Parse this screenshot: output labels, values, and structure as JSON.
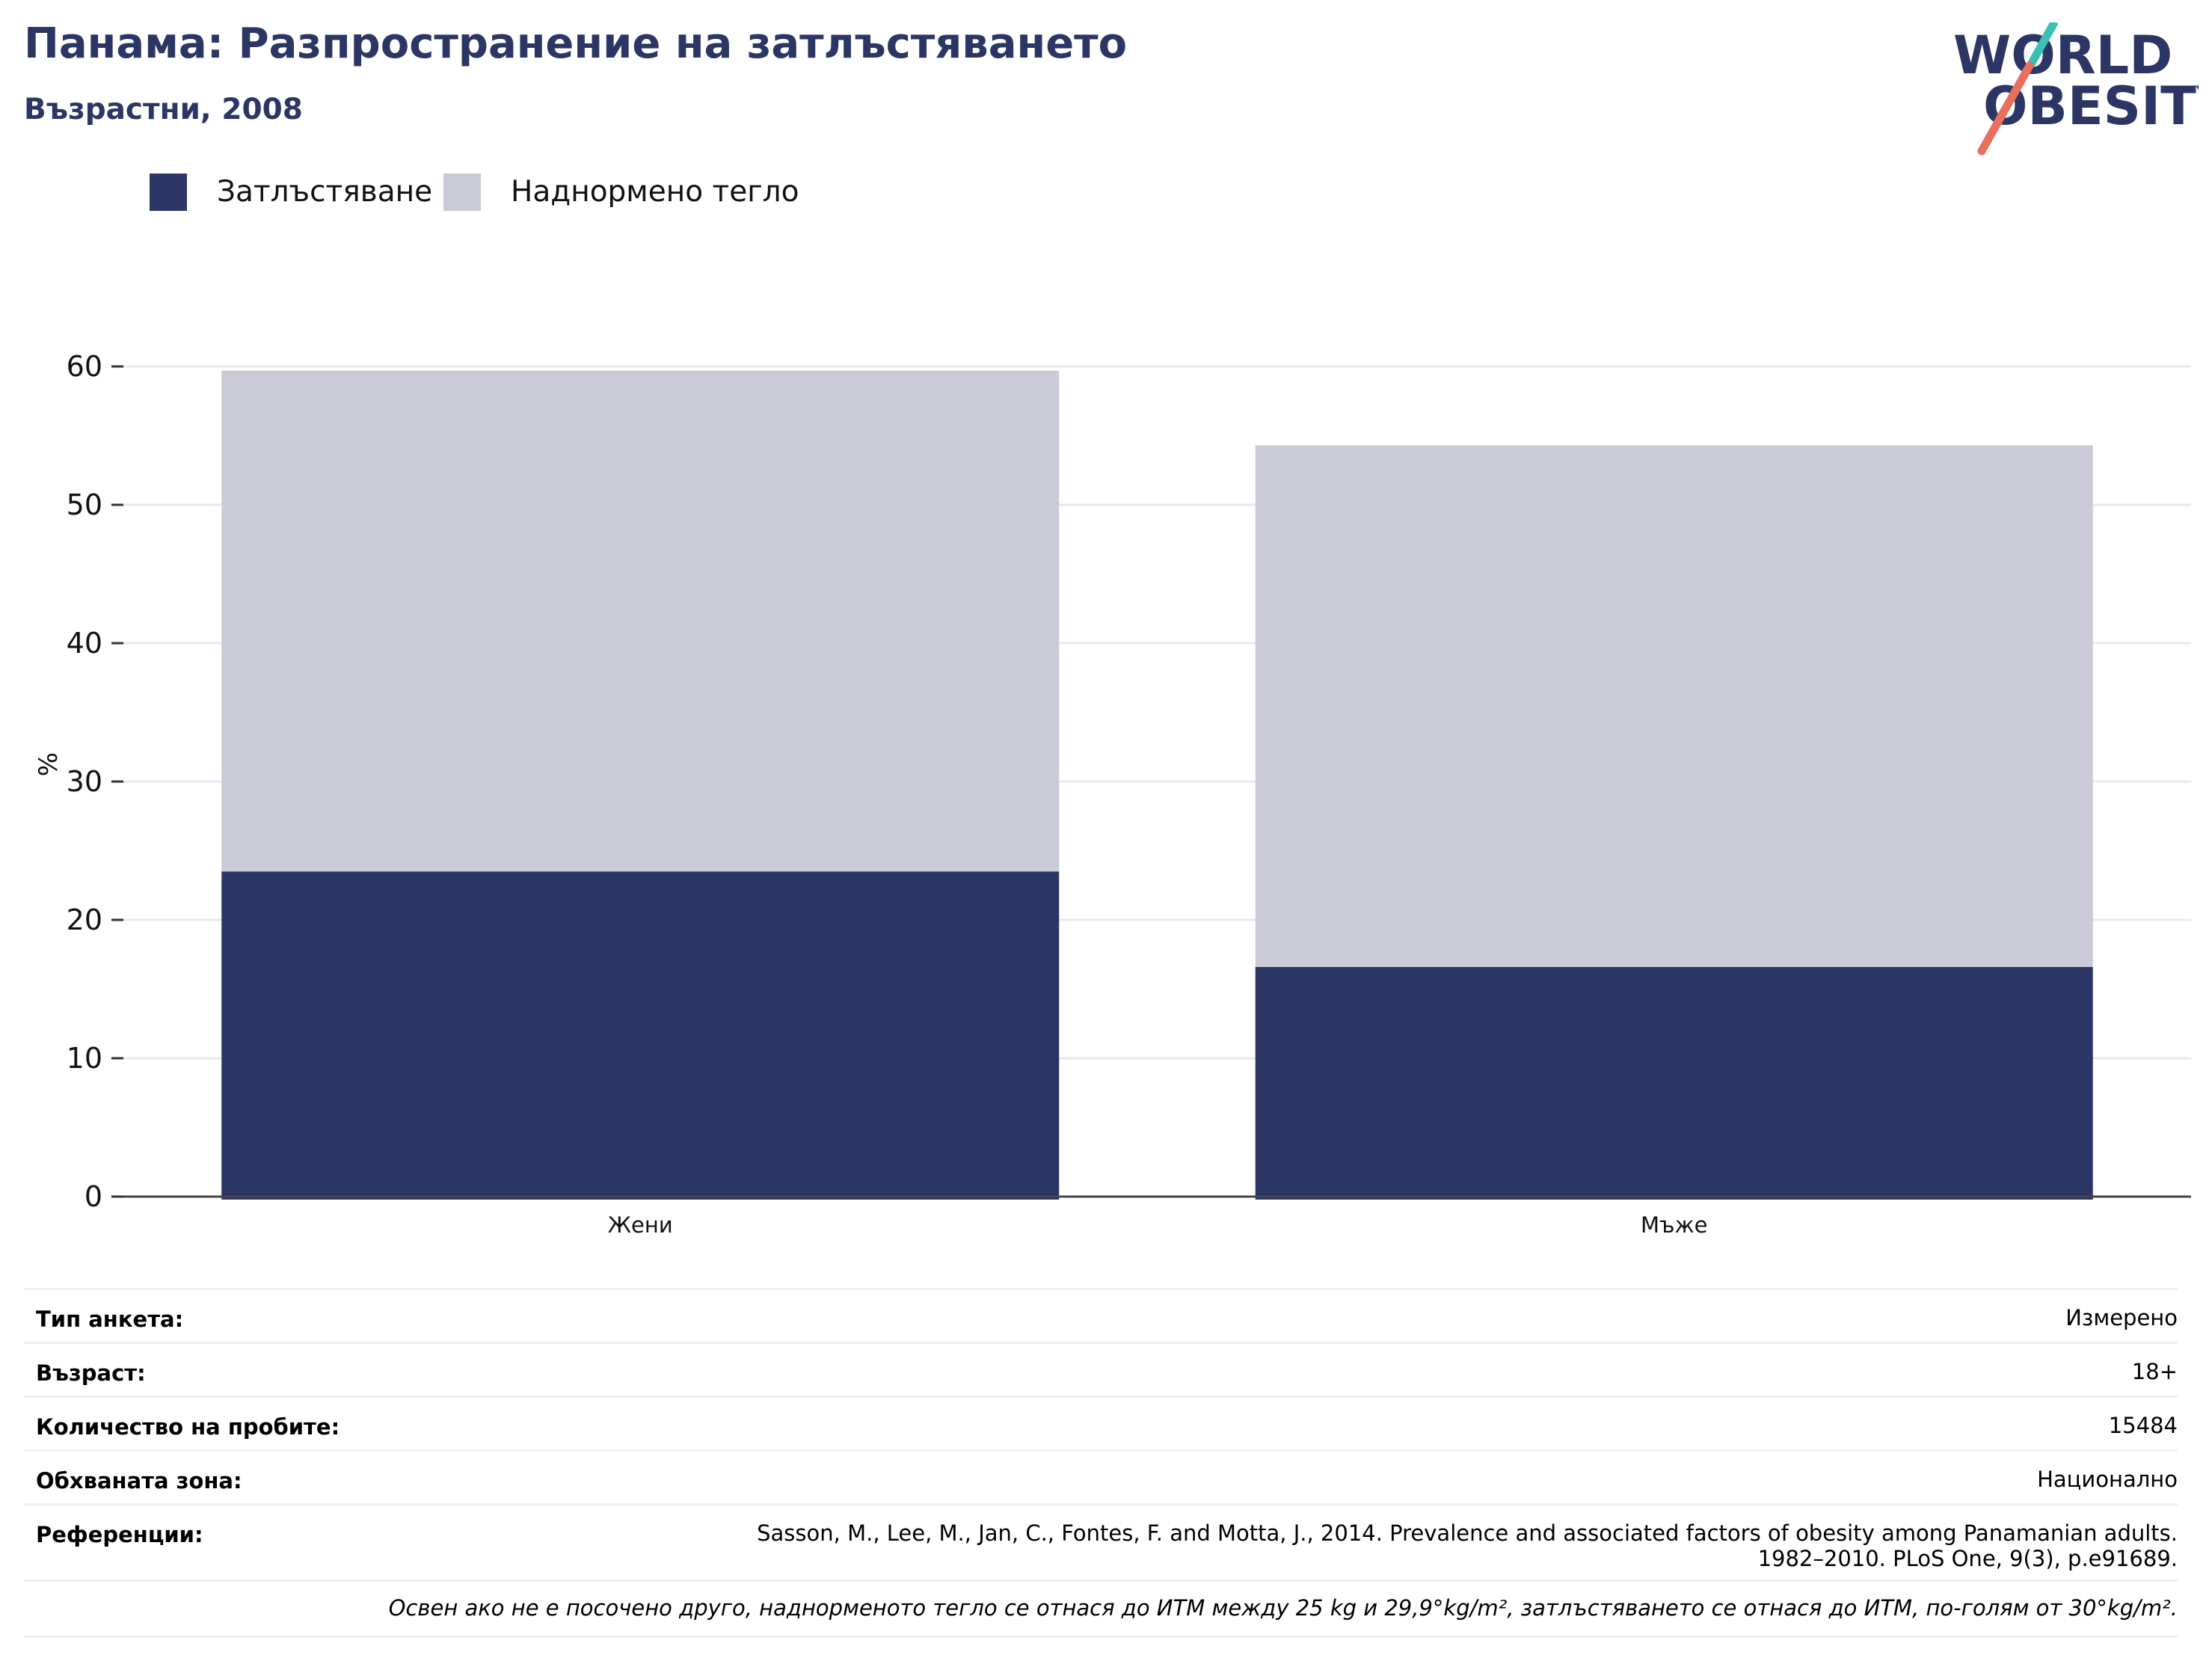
{
  "header": {
    "title": "Панама: Разпространение на затлъстяването",
    "subtitle": "Възрастни, 2008",
    "logo_text_line1": "WORLD",
    "logo_text_line2": "OBESITY"
  },
  "legend": [
    {
      "label": "Затлъстяване",
      "color": "#2b3664"
    },
    {
      "label": "Наднормено тегло",
      "color": "#cacbd7"
    }
  ],
  "chart_data": {
    "type": "bar",
    "stacked": true,
    "categories": [
      "Жени",
      "Мъже"
    ],
    "series": [
      {
        "name": "Затлъстяване",
        "color": "#2b3664",
        "values": [
          23.5,
          16.6
        ]
      },
      {
        "name": "Наднормено тегло",
        "color": "#cacbd7",
        "values": [
          36.2,
          37.7
        ]
      }
    ],
    "ylabel": "%",
    "ylim": [
      0,
      60
    ],
    "yticks": [
      0,
      10,
      20,
      30,
      40,
      50,
      60
    ],
    "grid": true,
    "legend_position": "top-left"
  },
  "info": {
    "rows": [
      {
        "label": "Тип анкета:",
        "value": "Измерено"
      },
      {
        "label": "Възраст:",
        "value": "18+"
      },
      {
        "label": "Количество на пробите:",
        "value": "15484"
      },
      {
        "label": "Обхваната зона:",
        "value": "Национално"
      },
      {
        "label": "Референции:",
        "value": "Sasson, M., Lee, M., Jan, C., Fontes, F. and Motta, J., 2014. Prevalence and associated factors of obesity among Panamanian adults.",
        "value2": "1982–2010. PLoS One, 9(3), p.e91689."
      }
    ],
    "note": "Освен ако не е посочено друго, наднорменото тегло се отнася до ИТМ между 25 kg и 29,9°kg/m², затлъстяването се отнася до ИТМ, по-голям от 30°kg/m²."
  },
  "colors": {
    "brand": "#2b3664",
    "overweight": "#cacbd7",
    "logo_teal": "#3bbfb6",
    "logo_coral": "#e8705e",
    "grid": "#e8e9ef"
  }
}
